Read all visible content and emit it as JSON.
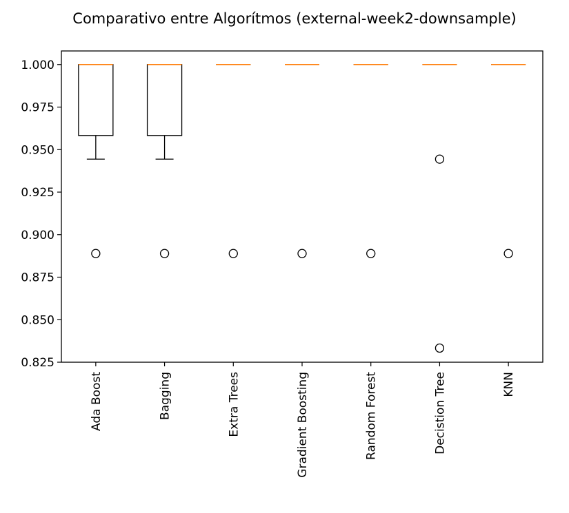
{
  "chart_data": {
    "type": "box",
    "title": "Comparativo entre Algorítmos (external-week2-downsample)",
    "xlabel": "",
    "ylabel": "",
    "ylim": [
      0.825,
      1.008
    ],
    "yticks": [
      "0.825",
      "0.850",
      "0.875",
      "0.900",
      "0.925",
      "0.950",
      "0.975",
      "1.000"
    ],
    "grid": false,
    "colors": {
      "box": "#000000",
      "median": "#ff7f0e",
      "flier": "#000000"
    },
    "categories": [
      "Ada Boost",
      "Bagging",
      "Extra Trees",
      "Gradient Boosting",
      "Random Forest",
      "Decistion Tree",
      "KNN"
    ],
    "boxes": [
      {
        "whisker_low": 0.9444,
        "q1": 0.9583,
        "median": 1.0,
        "q3": 1.0,
        "whisker_high": 1.0,
        "fliers": [
          0.8889
        ]
      },
      {
        "whisker_low": 0.9444,
        "q1": 0.9583,
        "median": 1.0,
        "q3": 1.0,
        "whisker_high": 1.0,
        "fliers": [
          0.8889
        ]
      },
      {
        "whisker_low": 1.0,
        "q1": 1.0,
        "median": 1.0,
        "q3": 1.0,
        "whisker_high": 1.0,
        "fliers": [
          0.8889
        ]
      },
      {
        "whisker_low": 1.0,
        "q1": 1.0,
        "median": 1.0,
        "q3": 1.0,
        "whisker_high": 1.0,
        "fliers": [
          0.8889
        ]
      },
      {
        "whisker_low": 1.0,
        "q1": 1.0,
        "median": 1.0,
        "q3": 1.0,
        "whisker_high": 1.0,
        "fliers": [
          0.8889
        ]
      },
      {
        "whisker_low": 1.0,
        "q1": 1.0,
        "median": 1.0,
        "q3": 1.0,
        "whisker_high": 1.0,
        "fliers": [
          0.9444,
          0.8333
        ]
      },
      {
        "whisker_low": 1.0,
        "q1": 1.0,
        "median": 1.0,
        "q3": 1.0,
        "whisker_high": 1.0,
        "fliers": [
          0.8889
        ]
      }
    ]
  }
}
